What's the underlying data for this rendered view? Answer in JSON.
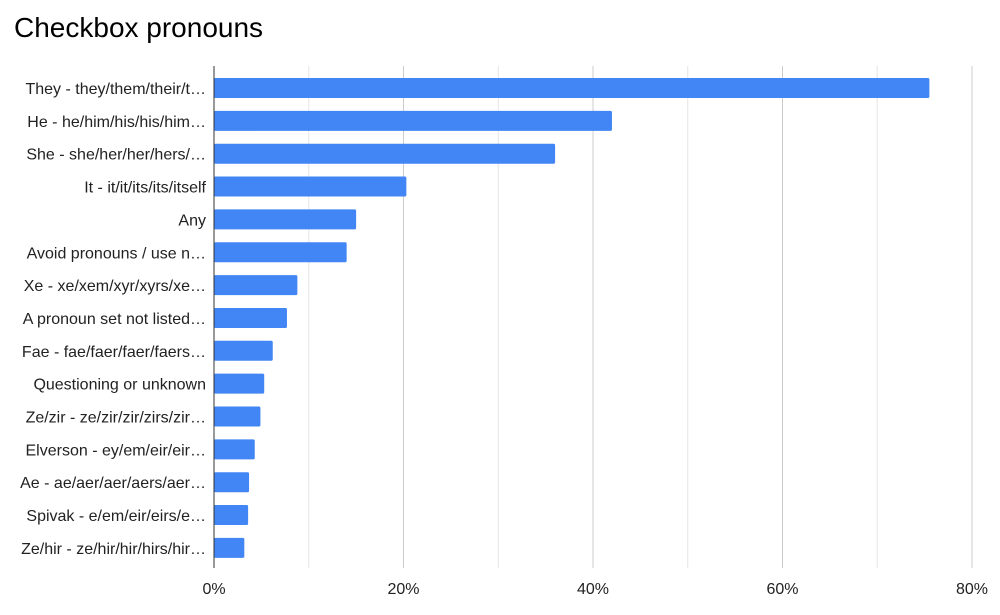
{
  "chart_data": {
    "type": "bar",
    "orientation": "horizontal",
    "title": "Checkbox pronouns",
    "xlabel": "",
    "ylabel": "",
    "categories": [
      "They - they/them/their/t…",
      "He - he/him/his/his/him…",
      "She - she/her/her/hers/…",
      "It - it/it/its/its/itself",
      "Any",
      "Avoid pronouns / use n…",
      "Xe - xe/xem/xyr/xyrs/xe…",
      "A pronoun set not listed…",
      "Fae - fae/faer/faer/faers…",
      "Questioning or unknown",
      "Ze/zir - ze/zir/zir/zirs/zir…",
      "Elverson - ey/em/eir/eir…",
      "Ae - ae/aer/aer/aers/aer…",
      "Spivak - e/em/eir/eirs/e…",
      "Ze/hir - ze/hir/hir/hirs/hir…"
    ],
    "values": [
      75.5,
      42.0,
      36.0,
      20.3,
      15.0,
      14.0,
      8.8,
      7.7,
      6.2,
      5.3,
      4.9,
      4.3,
      3.7,
      3.6,
      3.2
    ],
    "xlim": [
      0,
      80
    ],
    "xticks": [
      0,
      20,
      40,
      60,
      80
    ],
    "xtick_labels": [
      "0%",
      "20%",
      "40%",
      "60%",
      "80%"
    ],
    "minor_gridlines": true,
    "legend": "none",
    "bar_color": "#4285f4"
  }
}
